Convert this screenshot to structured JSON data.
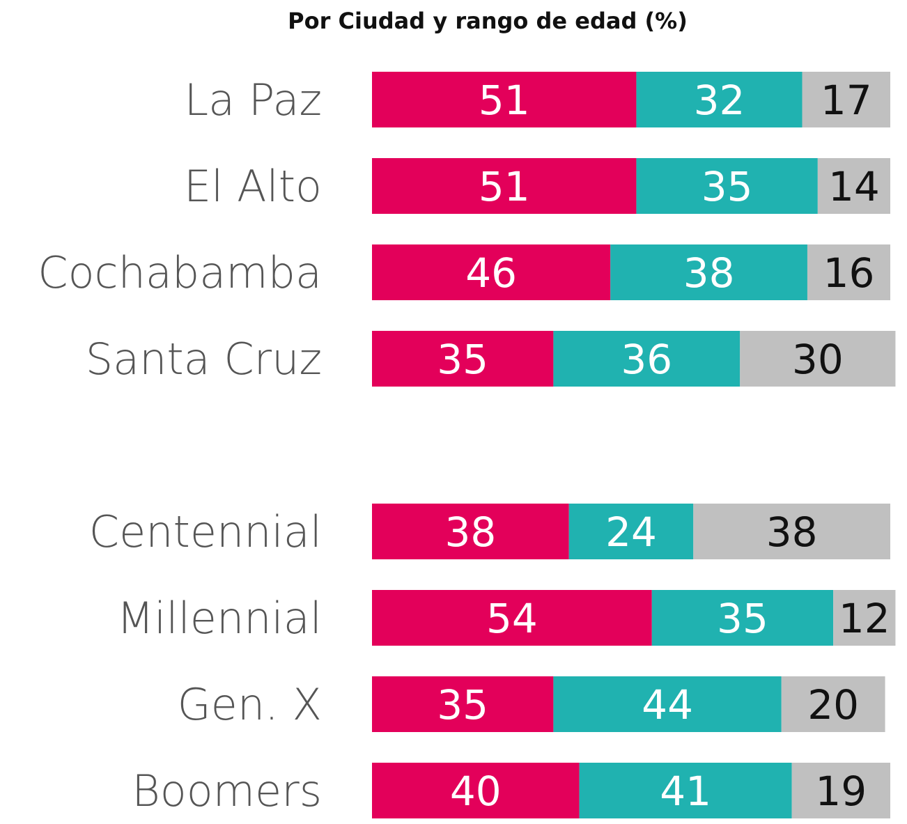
{
  "chart_data": {
    "type": "stacked_barh",
    "title": "Por Ciudad y rango de edad (%)",
    "categories": [
      "La Paz",
      "El Alto",
      "Cochabamba",
      "Santa Cruz",
      null,
      "Centennial",
      "Millennial",
      "Gen. X",
      "Boomers"
    ],
    "series": [
      {
        "color": "#e3005a",
        "label_color": "#ffffff",
        "values": [
          51,
          51,
          46,
          35,
          null,
          38,
          54,
          35,
          40
        ]
      },
      {
        "color": "#20b2b0",
        "label_color": "#ffffff",
        "values": [
          32,
          35,
          38,
          36,
          null,
          24,
          35,
          44,
          41
        ]
      },
      {
        "color": "#c0c0c0",
        "label_color": "#111111",
        "values": [
          17,
          14,
          16,
          30,
          null,
          38,
          12,
          20,
          19
        ]
      }
    ],
    "xlim": [
      0,
      100
    ]
  }
}
